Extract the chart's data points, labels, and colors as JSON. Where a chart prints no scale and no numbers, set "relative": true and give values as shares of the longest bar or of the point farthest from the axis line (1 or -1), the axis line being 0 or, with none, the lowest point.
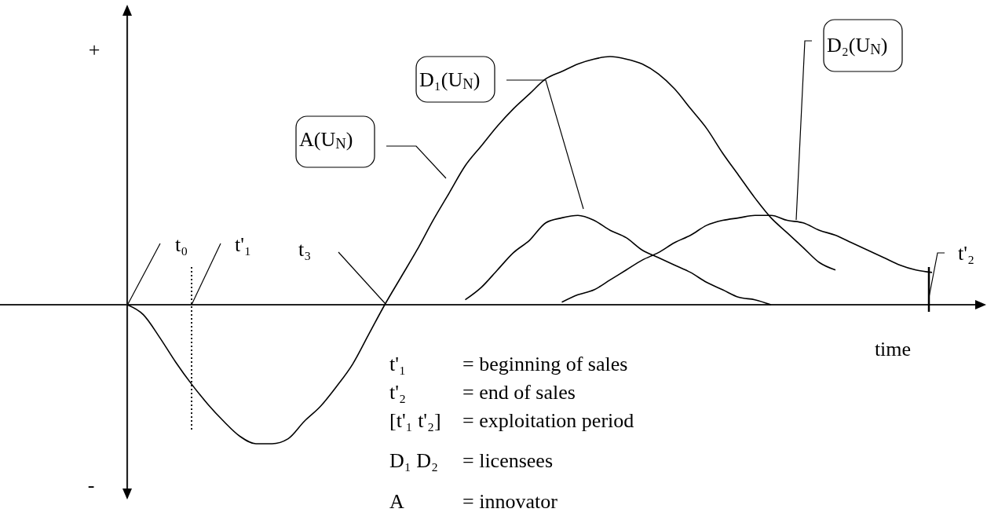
{
  "chart_data": {
    "type": "line",
    "relative": true,
    "xlabel": "time",
    "categories": [
      null,
      null,
      null,
      null,
      null,
      null,
      null,
      null,
      null,
      null,
      null,
      null,
      null,
      null,
      null,
      null,
      null,
      null,
      null,
      null,
      null,
      null,
      null,
      null,
      null,
      null,
      null,
      null,
      null,
      null,
      null,
      null,
      null,
      null,
      null,
      null,
      null,
      null,
      null,
      null,
      null,
      null,
      null,
      null,
      null,
      null,
      null,
      null,
      null,
      null,
      null,
      null,
      null,
      null
    ],
    "series": [
      {
        "name": "A(U$_{N}$)",
        "color": "#000000",
        "values": [
          0,
          -0.04,
          -0.13,
          -0.23,
          -0.32,
          -0.4,
          -0.47,
          -0.53,
          -0.56,
          -0.56,
          -0.54,
          -0.47,
          -0.41,
          -0.33,
          -0.24,
          -0.12,
          0,
          0.11,
          0.22,
          0.34,
          0.45,
          0.56,
          0.64,
          0.72,
          0.79,
          0.85,
          0.91,
          0.94,
          0.97,
          0.99,
          1,
          0.99,
          0.97,
          0.93,
          0.87,
          0.79,
          0.71,
          0.61,
          0.52,
          0.43,
          0.35,
          0.29,
          0.23,
          0.17,
          0.14,
          null,
          null,
          null,
          null,
          null,
          null,
          null,
          null,
          null
        ]
      },
      {
        "name": "D₁(U$_{N}$)",
        "color": "#000000",
        "values": [
          null,
          null,
          null,
          null,
          null,
          null,
          null,
          null,
          null,
          null,
          null,
          null,
          null,
          null,
          null,
          null,
          null,
          null,
          null,
          null,
          null,
          0.02,
          0.07,
          0.14,
          0.21,
          0.26,
          0.33,
          0.35,
          0.36,
          0.34,
          0.3,
          0.27,
          0.22,
          0.19,
          0.16,
          0.13,
          0.09,
          0.06,
          0.03,
          0.02,
          0,
          null,
          null,
          null,
          null,
          null,
          null,
          null,
          null,
          null,
          null,
          null,
          null,
          null
        ]
      },
      {
        "name": "D₂(U$_{N}$)",
        "color": "#000000",
        "values": [
          null,
          null,
          null,
          null,
          null,
          null,
          null,
          null,
          null,
          null,
          null,
          null,
          null,
          null,
          null,
          null,
          null,
          null,
          null,
          null,
          null,
          null,
          null,
          null,
          null,
          null,
          null,
          0.01,
          0.04,
          0.06,
          0.1,
          0.14,
          0.18,
          0.21,
          0.25,
          0.28,
          0.32,
          0.34,
          0.35,
          0.36,
          0.36,
          0.34,
          0.33,
          0.3,
          0.28,
          0.25,
          0.22,
          0.19,
          0.16,
          0.14,
          0.13,
          null,
          null,
          null
        ]
      }
    ],
    "annotations": [
      "+",
      "-",
      "t₀",
      "t'₁",
      "t₃",
      "t'₂",
      "t'₁",
      "= beginning of sales",
      "t'₂",
      "= end of sales",
      "[t'₁ t'₂]",
      "= exploitation period",
      "D₁ D₂",
      "= licensees",
      "A",
      "= innovator"
    ]
  }
}
